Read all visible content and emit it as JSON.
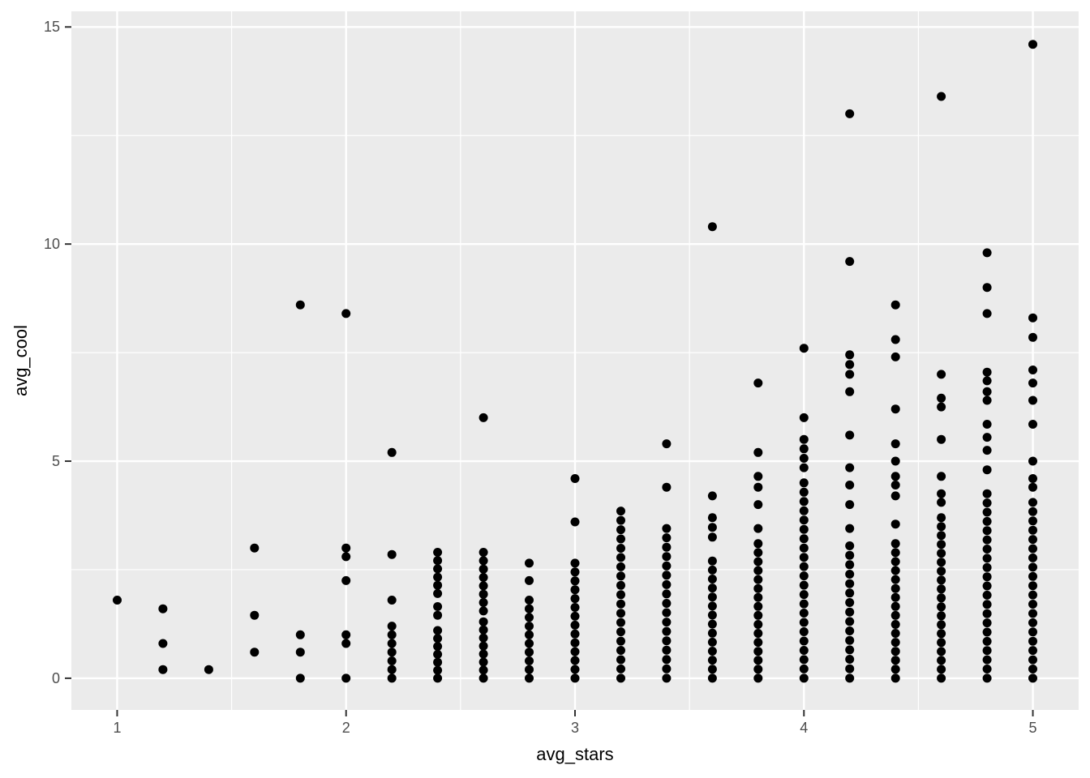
{
  "chart_data": {
    "type": "scatter",
    "title": "",
    "xlabel": "avg_stars",
    "ylabel": "avg_cool",
    "x_ticks": [
      "1",
      "2",
      "3",
      "4",
      "5"
    ],
    "x_tick_values": [
      1,
      2,
      3,
      4,
      5
    ],
    "y_ticks": [
      "0",
      "5",
      "10",
      "15"
    ],
    "y_tick_values": [
      0,
      5,
      10,
      15
    ],
    "x_minor": [
      1.5,
      2.5,
      3.5,
      4.5
    ],
    "y_minor": [
      2.5,
      7.5,
      12.5
    ],
    "xlim": [
      0.8,
      5.2
    ],
    "ylim": [
      -0.73,
      15.36
    ],
    "grid": true,
    "legend_position": "none",
    "point_color": "#000000",
    "panel_bg": "#EBEBEB",
    "grid_color": "#FFFFFF",
    "tick_mark_color": "#333333",
    "tick_label_color": "#4D4D4D",
    "axis_title_color": "#000000",
    "columns": [
      {
        "x": 1.0,
        "points": [
          1.8
        ],
        "stacks": []
      },
      {
        "x": 1.2,
        "points": [
          1.6,
          0.8,
          0.2
        ],
        "stacks": []
      },
      {
        "x": 1.4,
        "points": [
          0.2
        ],
        "stacks": []
      },
      {
        "x": 1.6,
        "points": [
          3.0,
          1.45,
          0.6
        ],
        "stacks": []
      },
      {
        "x": 1.8,
        "points": [
          8.6,
          1.0,
          0.6,
          0
        ],
        "stacks": []
      },
      {
        "x": 2.0,
        "points": [
          8.4,
          3.0,
          2.8,
          2.25,
          1.0,
          0.8,
          0
        ],
        "stacks": []
      },
      {
        "x": 2.2,
        "points": [
          5.2,
          2.85,
          1.8
        ],
        "stacks": [
          {
            "from": 0,
            "to": 1.2,
            "n": 7
          }
        ]
      },
      {
        "x": 2.4,
        "points": [
          1.65,
          1.45
        ],
        "stacks": [
          {
            "from": 1.95,
            "to": 2.9,
            "n": 6
          },
          {
            "from": 0,
            "to": 1.1,
            "n": 7
          }
        ]
      },
      {
        "x": 2.6,
        "points": [
          6.0
        ],
        "stacks": [
          {
            "from": 1.55,
            "to": 2.9,
            "n": 8
          },
          {
            "from": 0,
            "to": 1.3,
            "n": 8
          }
        ]
      },
      {
        "x": 2.8,
        "points": [
          2.65,
          2.25
        ],
        "stacks": [
          {
            "from": 0,
            "to": 1.8,
            "n": 10
          }
        ]
      },
      {
        "x": 3.0,
        "points": [
          4.6,
          3.6
        ],
        "stacks": [
          {
            "from": 0,
            "to": 2.65,
            "n": 14
          }
        ]
      },
      {
        "x": 3.2,
        "points": [],
        "stacks": [
          {
            "from": 0,
            "to": 3.85,
            "n": 19
          }
        ]
      },
      {
        "x": 3.4,
        "points": [
          5.4,
          4.4
        ],
        "stacks": [
          {
            "from": 0,
            "to": 3.45,
            "n": 17
          }
        ]
      },
      {
        "x": 3.6,
        "points": [
          10.4,
          4.2
        ],
        "stacks": [
          {
            "from": 3.25,
            "to": 3.7,
            "n": 3
          },
          {
            "from": 0,
            "to": 2.7,
            "n": 14
          }
        ]
      },
      {
        "x": 3.8,
        "points": [
          6.8,
          5.2,
          4.65,
          4.4,
          4.0,
          3.45
        ],
        "stacks": [
          {
            "from": 0,
            "to": 3.1,
            "n": 16
          }
        ]
      },
      {
        "x": 4.0,
        "points": [
          7.6,
          6.0
        ],
        "stacks": [
          {
            "from": 4.85,
            "to": 5.5,
            "n": 4
          },
          {
            "from": 0,
            "to": 4.5,
            "n": 22
          }
        ]
      },
      {
        "x": 4.2,
        "points": [
          13.0,
          9.6,
          6.6,
          5.6,
          4.85,
          4.45,
          4.0,
          3.45
        ],
        "stacks": [
          {
            "from": 7.0,
            "to": 7.45,
            "n": 3
          },
          {
            "from": 0,
            "to": 3.05,
            "n": 15
          }
        ]
      },
      {
        "x": 4.4,
        "points": [
          8.6,
          7.8,
          7.4,
          6.2,
          5.4,
          5.0,
          4.65,
          4.45,
          4.2,
          3.55
        ],
        "stacks": [
          {
            "from": 0,
            "to": 3.1,
            "n": 16
          }
        ]
      },
      {
        "x": 4.6,
        "points": [
          13.4,
          7.0,
          6.45,
          6.25,
          5.5,
          4.65,
          4.25,
          4.05
        ],
        "stacks": [
          {
            "from": 0,
            "to": 3.7,
            "n": 19
          }
        ]
      },
      {
        "x": 4.8,
        "points": [
          9.8,
          9.0,
          8.4,
          7.05,
          6.85,
          6.6,
          6.4,
          5.85,
          5.55,
          5.25,
          4.8
        ],
        "stacks": [
          {
            "from": 0,
            "to": 4.25,
            "n": 21
          }
        ]
      },
      {
        "x": 5.0,
        "points": [
          14.6,
          8.3,
          7.85,
          7.1,
          6.8,
          6.4,
          5.85,
          5.0,
          4.6,
          4.4
        ],
        "stacks": [
          {
            "from": 0,
            "to": 4.05,
            "n": 20
          }
        ]
      }
    ]
  }
}
